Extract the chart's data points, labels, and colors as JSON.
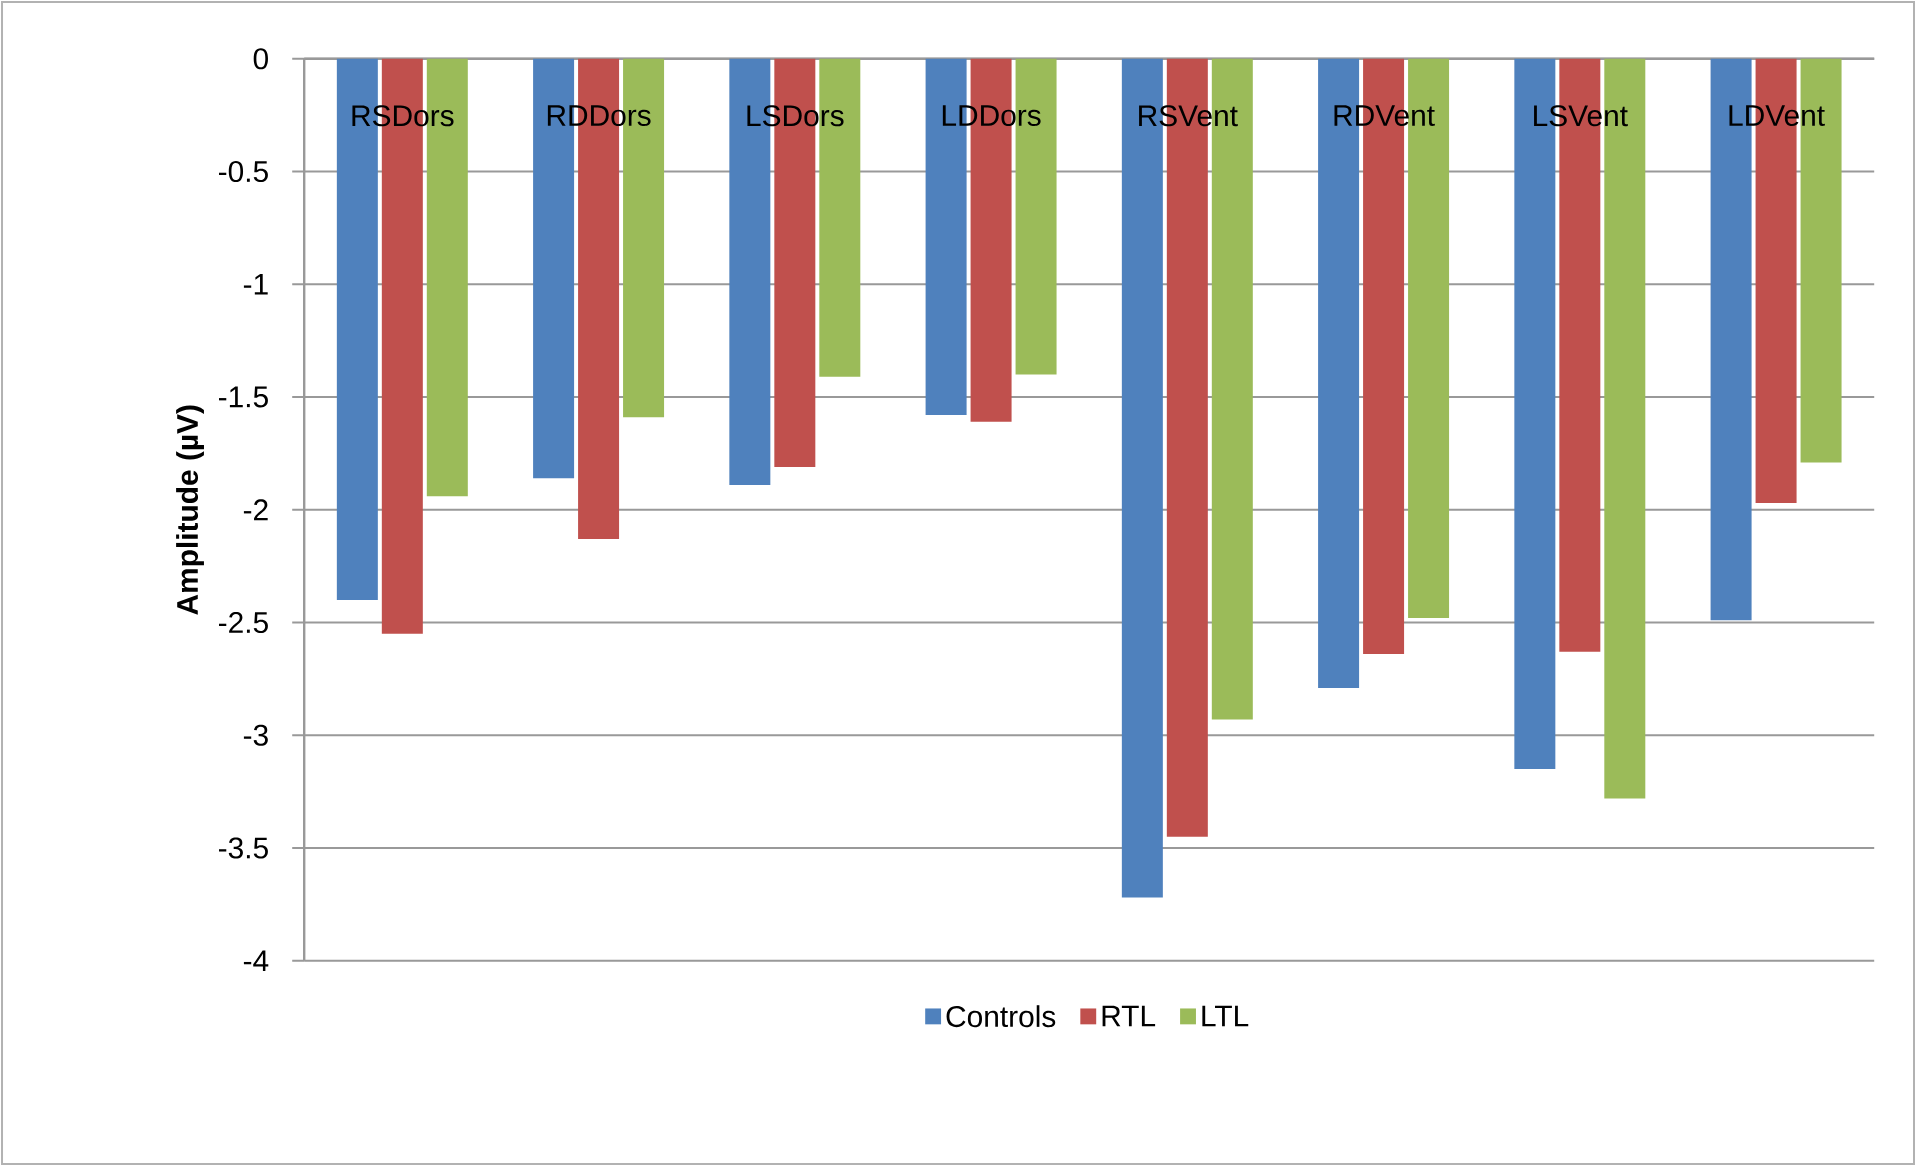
{
  "chart_data": {
    "type": "bar",
    "ylabel": "Amplitude (µV)",
    "categories": [
      "RSDors",
      "RDDors",
      "LSDors",
      "LDDors",
      "RSVent",
      "RDVent",
      "LSVent",
      "LDVent"
    ],
    "series": [
      {
        "name": "Controls",
        "color": "#4f81bd",
        "values": [
          -2.4,
          -1.86,
          -1.89,
          -1.58,
          -3.72,
          -2.79,
          -3.15,
          -2.49
        ]
      },
      {
        "name": "RTL",
        "color": "#c0504d",
        "values": [
          -2.55,
          -2.13,
          -1.81,
          -1.61,
          -3.45,
          -2.64,
          -2.63,
          -1.97
        ]
      },
      {
        "name": "LTL",
        "color": "#9bbb59",
        "values": [
          -1.94,
          -1.59,
          -1.41,
          -1.4,
          -2.93,
          -2.48,
          -3.28,
          -1.79
        ]
      }
    ],
    "ylim": [
      -4,
      0
    ],
    "yticks": [
      0,
      -0.5,
      -1,
      -1.5,
      -2,
      -2.5,
      -3,
      -3.5,
      -4
    ],
    "grid": "y",
    "legend": "bottom"
  }
}
